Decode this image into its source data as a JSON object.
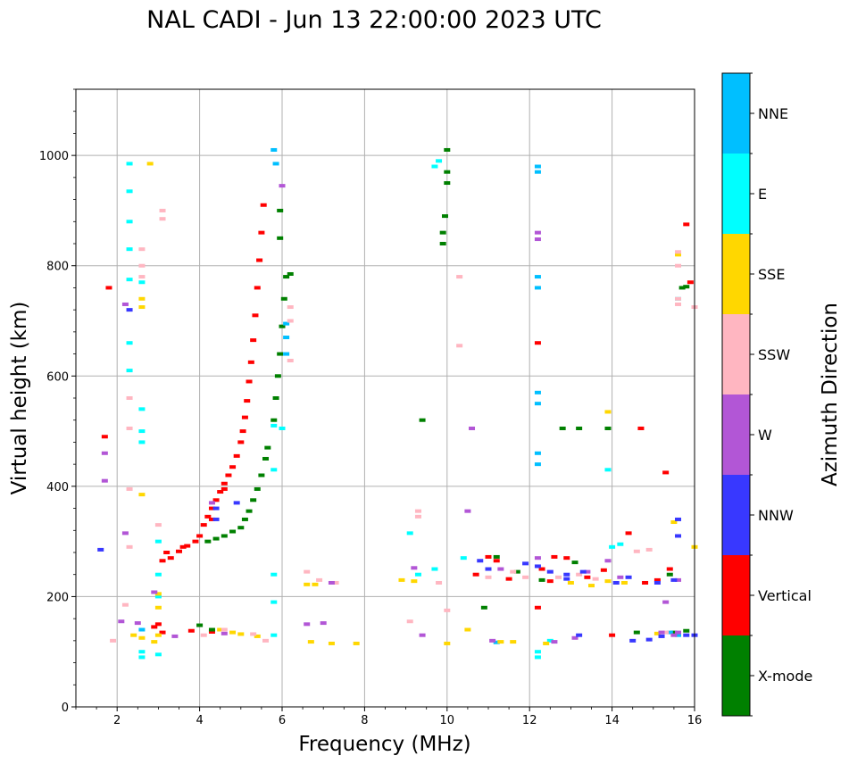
{
  "chart_data": {
    "type": "scatter",
    "title": "NAL CADI - Jun 13 22:00:00 2023 UTC",
    "xlabel": "Frequency (MHz)",
    "ylabel": "Virtual height (km)",
    "xlim": [
      1,
      16
    ],
    "ylim": [
      0,
      1120
    ],
    "xticks": [
      2,
      4,
      6,
      8,
      10,
      12,
      14,
      16
    ],
    "yticks": [
      0,
      200,
      400,
      600,
      800,
      1000
    ],
    "grid": true,
    "colorbar": {
      "label": "Azimuth Direction",
      "categories": [
        {
          "name": "X-mode",
          "color": "#008000"
        },
        {
          "name": "Vertical",
          "color": "#ff0000"
        },
        {
          "name": "NNW",
          "color": "#3838ff"
        },
        {
          "name": "W",
          "color": "#b256d6"
        },
        {
          "name": "SSW",
          "color": "#ffb6c1"
        },
        {
          "name": "SSE",
          "color": "#ffd700"
        },
        {
          "name": "E",
          "color": "#00ffff"
        },
        {
          "name": "NNE",
          "color": "#00bfff"
        }
      ]
    },
    "series": [
      {
        "name": "Vertical",
        "points": [
          [
            3.1,
            265
          ],
          [
            3.3,
            270
          ],
          [
            3.5,
            282
          ],
          [
            3.7,
            292
          ],
          [
            3.9,
            300
          ],
          [
            4.0,
            310
          ],
          [
            4.1,
            330
          ],
          [
            4.2,
            345
          ],
          [
            4.3,
            360
          ],
          [
            4.4,
            375
          ],
          [
            4.5,
            390
          ],
          [
            4.6,
            405
          ],
          [
            4.7,
            420
          ],
          [
            4.8,
            435
          ],
          [
            4.9,
            455
          ],
          [
            5.0,
            480
          ],
          [
            5.05,
            500
          ],
          [
            5.1,
            525
          ],
          [
            5.15,
            555
          ],
          [
            5.2,
            590
          ],
          [
            5.25,
            625
          ],
          [
            5.3,
            665
          ],
          [
            5.35,
            710
          ],
          [
            5.4,
            760
          ],
          [
            5.45,
            810
          ],
          [
            5.5,
            860
          ],
          [
            5.55,
            910
          ],
          [
            3.2,
            280
          ],
          [
            3.6,
            290
          ],
          [
            4.3,
            340
          ],
          [
            4.6,
            395
          ],
          [
            3.0,
            150
          ],
          [
            2.9,
            145
          ],
          [
            3.1,
            135
          ],
          [
            3.8,
            138
          ],
          [
            4.3,
            136
          ],
          [
            1.7,
            490
          ],
          [
            1.8,
            760
          ],
          [
            12.2,
            660
          ],
          [
            12.3,
            250
          ],
          [
            12.6,
            272
          ],
          [
            12.9,
            270
          ],
          [
            13.4,
            235
          ],
          [
            13.8,
            248
          ],
          [
            14.4,
            315
          ],
          [
            14.7,
            505
          ],
          [
            15.3,
            425
          ],
          [
            15.4,
            250
          ],
          [
            15.8,
            875
          ],
          [
            15.9,
            770
          ],
          [
            11.0,
            272
          ],
          [
            11.2,
            265
          ],
          [
            10.7,
            240
          ],
          [
            11.5,
            232
          ],
          [
            12.2,
            180
          ],
          [
            12.5,
            228
          ],
          [
            14.0,
            130
          ],
          [
            14.8,
            225
          ],
          [
            15.1,
            230
          ]
        ]
      },
      {
        "name": "X-mode",
        "points": [
          [
            4.2,
            300
          ],
          [
            4.4,
            305
          ],
          [
            4.6,
            310
          ],
          [
            4.8,
            318
          ],
          [
            5.0,
            325
          ],
          [
            5.1,
            340
          ],
          [
            5.2,
            355
          ],
          [
            5.3,
            375
          ],
          [
            5.4,
            395
          ],
          [
            5.5,
            420
          ],
          [
            5.6,
            450
          ],
          [
            5.65,
            470
          ],
          [
            5.8,
            520
          ],
          [
            5.85,
            560
          ],
          [
            5.9,
            600
          ],
          [
            5.95,
            640
          ],
          [
            6.0,
            690
          ],
          [
            6.05,
            740
          ],
          [
            6.1,
            780
          ],
          [
            6.2,
            785
          ],
          [
            5.95,
            850
          ],
          [
            5.95,
            900
          ],
          [
            9.9,
            840
          ],
          [
            9.95,
            890
          ],
          [
            10.0,
            970
          ],
          [
            10.0,
            1010
          ],
          [
            10.0,
            950
          ],
          [
            9.9,
            860
          ],
          [
            9.4,
            520
          ],
          [
            10.9,
            180
          ],
          [
            11.2,
            272
          ],
          [
            12.8,
            505
          ],
          [
            13.2,
            505
          ],
          [
            13.9,
            505
          ],
          [
            14.6,
            135
          ],
          [
            15.4,
            240
          ],
          [
            15.7,
            760
          ],
          [
            15.8,
            762
          ],
          [
            15.5,
            135
          ],
          [
            15.8,
            138
          ],
          [
            4.0,
            148
          ],
          [
            4.3,
            140
          ],
          [
            13.1,
            262
          ],
          [
            12.3,
            230
          ],
          [
            11.7,
            245
          ]
        ]
      },
      {
        "name": "NNE",
        "points": [
          [
            5.8,
            1010
          ],
          [
            5.85,
            985
          ],
          [
            6.1,
            670
          ],
          [
            6.1,
            695
          ],
          [
            6.1,
            640
          ],
          [
            12.2,
            980
          ],
          [
            12.2,
            970
          ],
          [
            12.2,
            760
          ],
          [
            12.2,
            780
          ],
          [
            12.2,
            550
          ],
          [
            12.2,
            570
          ],
          [
            12.2,
            440
          ],
          [
            12.2,
            460
          ],
          [
            15.4,
            135
          ],
          [
            15.6,
            130
          ],
          [
            2.6,
            140
          ],
          [
            11.2,
            117
          ]
        ]
      },
      {
        "name": "E",
        "points": [
          [
            2.3,
            985
          ],
          [
            2.3,
            935
          ],
          [
            2.3,
            880
          ],
          [
            2.3,
            830
          ],
          [
            2.3,
            775
          ],
          [
            2.6,
            770
          ],
          [
            2.3,
            660
          ],
          [
            2.3,
            610
          ],
          [
            2.6,
            540
          ],
          [
            2.6,
            500
          ],
          [
            2.6,
            480
          ],
          [
            3.0,
            300
          ],
          [
            3.0,
            240
          ],
          [
            3.0,
            200
          ],
          [
            2.6,
            100
          ],
          [
            2.6,
            90
          ],
          [
            3.0,
            95
          ],
          [
            5.8,
            510
          ],
          [
            5.8,
            430
          ],
          [
            5.8,
            240
          ],
          [
            5.8,
            190
          ],
          [
            5.8,
            130
          ],
          [
            6.0,
            505
          ],
          [
            9.7,
            980
          ],
          [
            9.8,
            990
          ],
          [
            9.1,
            315
          ],
          [
            9.3,
            240
          ],
          [
            9.7,
            250
          ],
          [
            10.4,
            270
          ],
          [
            12.2,
            100
          ],
          [
            12.2,
            90
          ],
          [
            13.9,
            430
          ],
          [
            14.0,
            290
          ],
          [
            14.2,
            295
          ],
          [
            12.5,
            120
          ],
          [
            15.6,
            740
          ]
        ]
      },
      {
        "name": "SSE",
        "points": [
          [
            2.6,
            740
          ],
          [
            2.6,
            725
          ],
          [
            2.8,
            985
          ],
          [
            2.6,
            385
          ],
          [
            3.0,
            205
          ],
          [
            3.0,
            180
          ],
          [
            3.0,
            130
          ],
          [
            2.4,
            130
          ],
          [
            2.6,
            125
          ],
          [
            2.9,
            118
          ],
          [
            4.5,
            140
          ],
          [
            4.8,
            135
          ],
          [
            5.0,
            132
          ],
          [
            5.4,
            128
          ],
          [
            6.6,
            222
          ],
          [
            6.8,
            222
          ],
          [
            6.7,
            118
          ],
          [
            7.2,
            115
          ],
          [
            7.8,
            115
          ],
          [
            8.9,
            230
          ],
          [
            9.2,
            228
          ],
          [
            10.0,
            115
          ],
          [
            10.5,
            140
          ],
          [
            11.3,
            118
          ],
          [
            11.6,
            118
          ],
          [
            12.4,
            115
          ],
          [
            13.0,
            225
          ],
          [
            13.5,
            220
          ],
          [
            13.9,
            228
          ],
          [
            14.3,
            225
          ],
          [
            13.9,
            535
          ],
          [
            15.1,
            133
          ],
          [
            15.5,
            335
          ],
          [
            15.6,
            820
          ],
          [
            16,
            290
          ]
        ]
      },
      {
        "name": "SSW",
        "points": [
          [
            2.6,
            800
          ],
          [
            2.6,
            830
          ],
          [
            2.6,
            780
          ],
          [
            3.1,
            900
          ],
          [
            3.1,
            885
          ],
          [
            2.3,
            560
          ],
          [
            2.3,
            505
          ],
          [
            2.3,
            395
          ],
          [
            2.3,
            290
          ],
          [
            3.0,
            330
          ],
          [
            2.2,
            185
          ],
          [
            1.9,
            120
          ],
          [
            4.1,
            130
          ],
          [
            4.6,
            140
          ],
          [
            5.3,
            132
          ],
          [
            5.6,
            120
          ],
          [
            6.2,
            725
          ],
          [
            6.2,
            700
          ],
          [
            6.2,
            628
          ],
          [
            6.6,
            245
          ],
          [
            6.9,
            230
          ],
          [
            7.3,
            225
          ],
          [
            9.1,
            155
          ],
          [
            9.3,
            355
          ],
          [
            9.3,
            345
          ],
          [
            10.3,
            780
          ],
          [
            10.3,
            655
          ],
          [
            9.8,
            225
          ],
          [
            10.0,
            175
          ],
          [
            11.0,
            235
          ],
          [
            11.6,
            245
          ],
          [
            11.9,
            235
          ],
          [
            12.5,
            245
          ],
          [
            12.7,
            235
          ],
          [
            13.2,
            240
          ],
          [
            13.6,
            232
          ],
          [
            14.6,
            282
          ],
          [
            14.9,
            285
          ],
          [
            15.6,
            800
          ],
          [
            15.6,
            825
          ],
          [
            15.6,
            740
          ],
          [
            15.6,
            730
          ],
          [
            16,
            725
          ],
          [
            15.3,
            135
          ]
        ]
      },
      {
        "name": "W",
        "points": [
          [
            2.2,
            730
          ],
          [
            1.7,
            460
          ],
          [
            1.7,
            410
          ],
          [
            2.2,
            315
          ],
          [
            2.9,
            208
          ],
          [
            6.0,
            945
          ],
          [
            4.3,
            370
          ],
          [
            10.6,
            505
          ],
          [
            10.5,
            355
          ],
          [
            12.2,
            860
          ],
          [
            12.2,
            848
          ],
          [
            9.2,
            252
          ],
          [
            9.4,
            130
          ],
          [
            11.3,
            250
          ],
          [
            12.2,
            270
          ],
          [
            13.4,
            245
          ],
          [
            13.9,
            265
          ],
          [
            14.2,
            235
          ],
          [
            15.3,
            190
          ],
          [
            15.6,
            230
          ],
          [
            15.5,
            130
          ],
          [
            15.6,
            135
          ],
          [
            15.2,
            135
          ],
          [
            6.6,
            150
          ],
          [
            7.0,
            152
          ],
          [
            7.2,
            225
          ],
          [
            2.1,
            155
          ],
          [
            2.5,
            152
          ],
          [
            3.4,
            128
          ],
          [
            4.6,
            133
          ],
          [
            11.1,
            120
          ],
          [
            12.6,
            118
          ],
          [
            13.1,
            125
          ]
        ]
      },
      {
        "name": "NNW",
        "points": [
          [
            1.6,
            285
          ],
          [
            2.3,
            720
          ],
          [
            4.4,
            360
          ],
          [
            4.9,
            370
          ],
          [
            4.4,
            340
          ],
          [
            12.2,
            255
          ],
          [
            12.5,
            245
          ],
          [
            12.9,
            240
          ],
          [
            13.3,
            245
          ],
          [
            14.1,
            225
          ],
          [
            14.4,
            235
          ],
          [
            15.1,
            225
          ],
          [
            15.5,
            230
          ],
          [
            15.6,
            340
          ],
          [
            15.6,
            310
          ],
          [
            10.8,
            265
          ],
          [
            11.0,
            250
          ],
          [
            11.9,
            260
          ],
          [
            12.9,
            232
          ],
          [
            14.5,
            120
          ],
          [
            14.9,
            122
          ],
          [
            15.2,
            128
          ],
          [
            15.8,
            130
          ],
          [
            16,
            130
          ],
          [
            13.2,
            130
          ]
        ]
      }
    ]
  }
}
